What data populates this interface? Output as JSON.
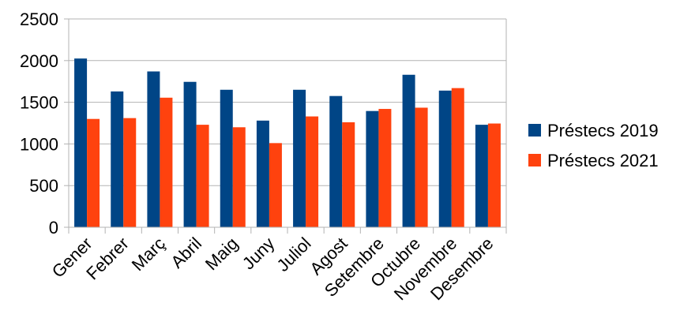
{
  "chart_data": {
    "type": "bar",
    "categories": [
      "Gener",
      "Febrer",
      "Març",
      "Abril",
      "Maig",
      "Juny",
      "Juliol",
      "Agost",
      "Setembre",
      "Octubre",
      "Novembre",
      "Desembre"
    ],
    "series": [
      {
        "name": "Préstecs 2019",
        "color": "#004586",
        "values": [
          2025,
          1630,
          1870,
          1745,
          1650,
          1280,
          1650,
          1575,
          1395,
          1830,
          1640,
          1230
        ]
      },
      {
        "name": "Préstecs 2021",
        "color": "#ff420e",
        "values": [
          1300,
          1310,
          1555,
          1230,
          1200,
          1010,
          1330,
          1260,
          1420,
          1435,
          1670,
          1245
        ]
      }
    ],
    "ylim": [
      0,
      2500
    ],
    "yticks": [
      0,
      500,
      1000,
      1500,
      2000,
      2500
    ],
    "grid": true,
    "legend_position": "right"
  }
}
